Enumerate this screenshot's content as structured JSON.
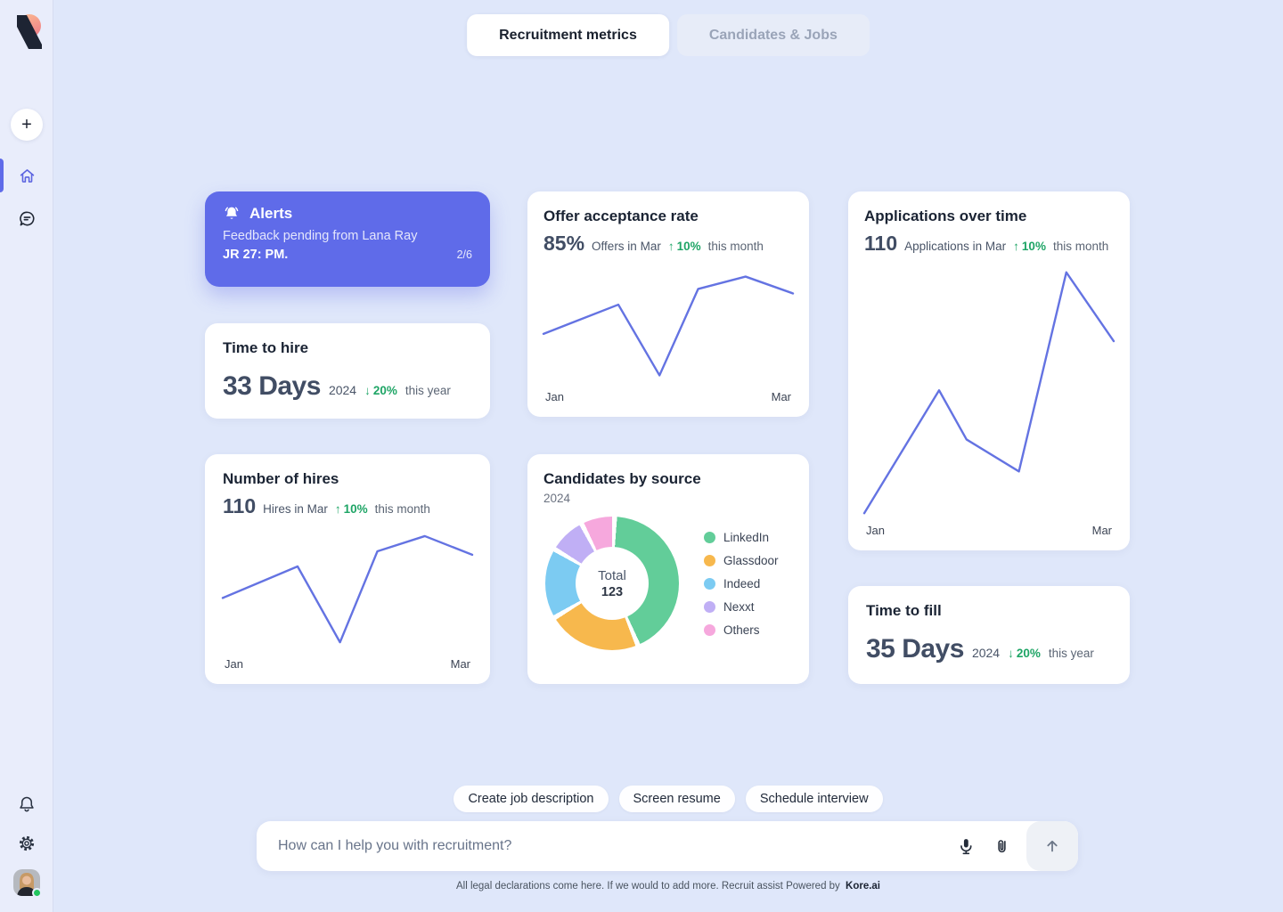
{
  "colors": {
    "accent": "#5F6BE9",
    "line": "#6473E2",
    "green": "#1FA566",
    "page_bg": "#dfe7fa",
    "sidebar_bg": "#e9edfb"
  },
  "icons": {
    "plus": "+",
    "up_arrow": "↑",
    "down_arrow": "↓"
  },
  "tabs": {
    "recruitment": "Recruitment metrics",
    "candidates": "Candidates & Jobs"
  },
  "alerts": {
    "title": "Alerts",
    "message": "Feedback pending from Lana Ray",
    "reference": "JR 27: PM.",
    "counter": "2/6"
  },
  "time_to_hire": {
    "title": "Time to hire",
    "value": "33 Days",
    "year": "2024",
    "delta": "20%",
    "period": "this year"
  },
  "offer_acceptance": {
    "title": "Offer acceptance rate",
    "value": "85%",
    "label": "Offers in Mar",
    "delta": "10%",
    "period": "this month"
  },
  "number_of_hires": {
    "title": "Number of hires",
    "value": "110",
    "label": "Hires in Mar",
    "delta": "10%",
    "period": "this month"
  },
  "applications": {
    "title": "Applications over time",
    "value": "110",
    "label": "Applications in Mar",
    "delta": "10%",
    "period": "this month"
  },
  "candidates_by_source": {
    "title": "Candidates by source",
    "subtitle": "2024",
    "total_label": "Total",
    "total_value": "123"
  },
  "time_to_fill": {
    "title": "Time to fill",
    "value": "35 Days",
    "year": "2024",
    "delta": "20%",
    "period": "this year"
  },
  "chart_data": [
    {
      "id": "offer_acceptance_rate",
      "type": "line",
      "color": "#6473E2",
      "x_labels": [
        "Jan",
        "Mar"
      ],
      "points": [
        [
          0,
          0.57
        ],
        [
          0.3,
          0.31
        ],
        [
          0.465,
          0.94
        ],
        [
          0.62,
          0.17
        ],
        [
          0.81,
          0.06
        ],
        [
          1,
          0.21
        ]
      ]
    },
    {
      "id": "number_of_hires",
      "type": "line",
      "color": "#6473E2",
      "x_labels": [
        "Jan",
        "Mar"
      ],
      "points": [
        [
          0,
          0.56
        ],
        [
          0.3,
          0.29
        ],
        [
          0.47,
          0.94
        ],
        [
          0.62,
          0.16
        ],
        [
          0.81,
          0.03
        ],
        [
          1,
          0.19
        ]
      ]
    },
    {
      "id": "applications_over_time",
      "type": "line",
      "color": "#6473E2",
      "x_labels": [
        "Jan",
        "Mar"
      ],
      "points": [
        [
          0,
          0.99
        ],
        [
          0.3,
          0.49
        ],
        [
          0.41,
          0.69
        ],
        [
          0.62,
          0.82
        ],
        [
          0.81,
          0.01
        ],
        [
          1,
          0.29
        ]
      ]
    },
    {
      "id": "candidates_by_source",
      "type": "donut",
      "total": 123,
      "slices": [
        {
          "label": "LinkedIn",
          "value": 53,
          "color": "#62CD99"
        },
        {
          "label": "Glassdoor",
          "value": 28,
          "color": "#F7B84D"
        },
        {
          "label": "Indeed",
          "value": 21,
          "color": "#7CCBF2"
        },
        {
          "label": "Nexxt",
          "value": 11,
          "color": "#C0AFF5"
        },
        {
          "label": "Others",
          "value": 10,
          "color": "#F6A8DD"
        }
      ]
    }
  ],
  "composer": {
    "chips": [
      "Create job description",
      "Screen resume",
      "Schedule interview"
    ],
    "placeholder": "How can I help you with recruitment?"
  },
  "footer": {
    "disclaimer": "All legal declarations come here. If we would to add more. Recruit assist Powered by",
    "brand": "Kore.ai"
  }
}
